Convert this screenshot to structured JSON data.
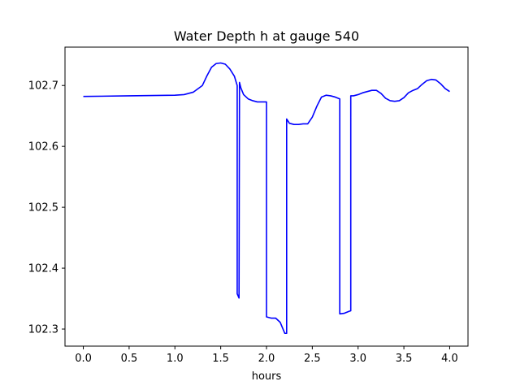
{
  "chart_data": {
    "type": "line",
    "title": "Water Depth h at gauge 540",
    "xlabel": "hours",
    "ylabel": "",
    "xlim": [
      -0.2,
      4.2
    ],
    "ylim": [
      102.272,
      102.763
    ],
    "x_ticks": [
      0.0,
      0.5,
      1.0,
      1.5,
      2.0,
      2.5,
      3.0,
      3.5,
      4.0
    ],
    "x_tick_labels": [
      "0.0",
      "0.5",
      "1.0",
      "1.5",
      "2.0",
      "2.5",
      "3.0",
      "3.5",
      "4.0"
    ],
    "y_ticks": [
      102.3,
      102.4,
      102.5,
      102.6,
      102.7
    ],
    "y_tick_labels": [
      "102.3",
      "102.4",
      "102.5",
      "102.6",
      "102.7"
    ],
    "grid": false,
    "series": [
      {
        "color": "#0000ff",
        "x": [
          0.0,
          0.5,
          1.0,
          1.1,
          1.2,
          1.3,
          1.35,
          1.4,
          1.45,
          1.5,
          1.55,
          1.6,
          1.65,
          1.68,
          1.68,
          1.7,
          1.705,
          1.72,
          1.75,
          1.8,
          1.85,
          1.9,
          1.95,
          2.0,
          2.0,
          2.05,
          2.1,
          2.15,
          2.2,
          2.22,
          2.22,
          2.25,
          2.3,
          2.35,
          2.4,
          2.45,
          2.5,
          2.55,
          2.6,
          2.65,
          2.7,
          2.75,
          2.8,
          2.8,
          2.85,
          2.9,
          2.92,
          2.92,
          2.95,
          3.0,
          3.05,
          3.1,
          3.15,
          3.2,
          3.25,
          3.3,
          3.35,
          3.4,
          3.45,
          3.5,
          3.55,
          3.6,
          3.65,
          3.7,
          3.75,
          3.8,
          3.85,
          3.9,
          3.95,
          4.0
        ],
        "y": [
          102.682,
          102.683,
          102.684,
          102.685,
          102.689,
          102.7,
          102.716,
          102.73,
          102.736,
          102.737,
          102.735,
          102.727,
          102.715,
          102.7,
          102.358,
          102.351,
          102.705,
          102.696,
          102.685,
          102.678,
          102.675,
          102.673,
          102.673,
          102.673,
          102.32,
          102.318,
          102.318,
          102.311,
          102.293,
          102.293,
          102.645,
          102.638,
          102.636,
          102.636,
          102.637,
          102.637,
          102.648,
          102.666,
          102.681,
          102.684,
          102.683,
          102.681,
          102.678,
          102.325,
          102.326,
          102.329,
          102.33,
          102.683,
          102.683,
          102.685,
          102.688,
          102.69,
          102.692,
          102.692,
          102.687,
          102.679,
          102.675,
          102.674,
          102.675,
          102.68,
          102.688,
          102.692,
          102.695,
          102.702,
          102.708,
          102.71,
          102.709,
          102.703,
          102.695,
          102.69
        ]
      }
    ]
  }
}
